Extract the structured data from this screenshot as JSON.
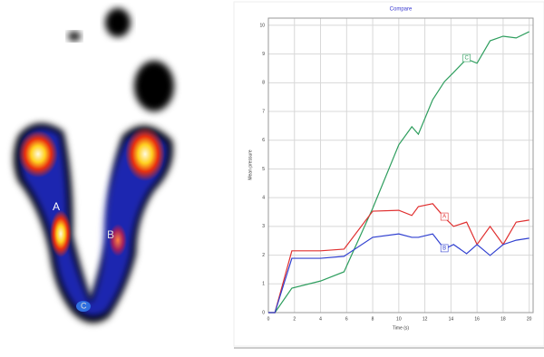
{
  "heatmap": {
    "labels": [
      "A",
      "B",
      "C"
    ]
  },
  "chart_data": {
    "type": "line",
    "title": "Compare",
    "x_label": "Time (s)",
    "y_label": "Mean pressure",
    "x": [
      0,
      0.5,
      1.8,
      4,
      5.8,
      8,
      10,
      11,
      11.5,
      12.6,
      13.5,
      14.2,
      15.2,
      16,
      17,
      18,
      19,
      20
    ],
    "series": [
      {
        "name": "C",
        "color": "#2e9e5e",
        "values": [
          0,
          0,
          0.85,
          1.1,
          1.42,
          3.63,
          5.84,
          6.47,
          6.21,
          7.41,
          8.04,
          8.36,
          8.83,
          8.68,
          9.46,
          9.62,
          9.56,
          9.78
        ]
      },
      {
        "name": "A",
        "color": "#e03030",
        "values": [
          0,
          0,
          2.15,
          2.15,
          2.21,
          3.53,
          3.56,
          3.38,
          3.69,
          3.79,
          3.31,
          3.0,
          3.15,
          2.37,
          3.0,
          2.37,
          3.15,
          3.22
        ]
      },
      {
        "name": "B",
        "color": "#3040d0",
        "values": [
          0,
          0,
          1.89,
          1.89,
          1.96,
          2.62,
          2.74,
          2.62,
          2.62,
          2.74,
          2.21,
          2.37,
          2.05,
          2.37,
          1.99,
          2.37,
          2.52,
          2.59
        ]
      }
    ],
    "xlim": [
      0,
      20.3
    ],
    "ylim": [
      0,
      10.25
    ],
    "xticks": [
      0,
      2,
      4,
      6,
      8,
      10,
      12,
      14,
      16,
      18,
      20
    ],
    "yticks": [
      0,
      1,
      2,
      3,
      4,
      5,
      6,
      7,
      8,
      9,
      10
    ],
    "grid": true
  }
}
